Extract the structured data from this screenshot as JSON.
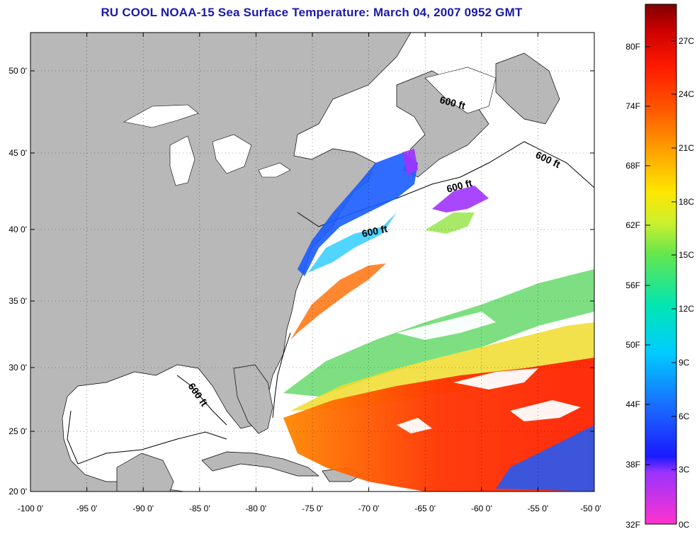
{
  "title": "RU COOL  NOAA-15  Sea Surface Temperature:  March 04, 2007 0952 GMT",
  "map": {
    "lat_labels": [
      "50 0'",
      "45 0'",
      "40 0'",
      "35 0'",
      "30 0'",
      "25 0'",
      "20 0'"
    ],
    "lon_labels": [
      "-100 0'",
      "-95 0'",
      "-90 0'",
      "-85 0'",
      "-80 0'",
      "-75 0'",
      "-70 0'",
      "-65 0'",
      "-60 0'",
      "-55 0'",
      "-50 0'"
    ],
    "isobath_labels": [
      "600 ft",
      "600 ft",
      "600 ft",
      "600 ft",
      "600 ft"
    ],
    "land_color": "#b8b8b8",
    "ocean_color": "#ffffff"
  },
  "colorbar": {
    "fahrenheit_labels": [
      "80F",
      "74F",
      "68F",
      "62F",
      "56F",
      "50F",
      "44F",
      "38F",
      "32F"
    ],
    "celsius_labels": [
      "27C",
      "24C",
      "21C",
      "18C",
      "15C",
      "12C",
      "9C",
      "6C",
      "3C",
      "0C"
    ],
    "colors": [
      "#ff33cc",
      "#9933ff",
      "#1a1aff",
      "#1a66ff",
      "#00ccff",
      "#00e6b3",
      "#66e64d",
      "#ccf02e",
      "#ffe600",
      "#ffa000",
      "#ff5500",
      "#ff1a00",
      "#cc0000",
      "#800000"
    ]
  }
}
